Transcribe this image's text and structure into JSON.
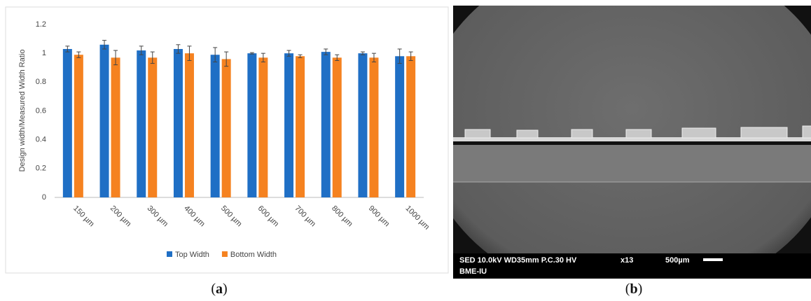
{
  "chart_data": {
    "type": "bar",
    "y_label": "Design width/Measured Width Ratio",
    "categories": [
      "150 µm",
      "200 µm",
      "300 µm",
      "400 µm",
      "500 µm",
      "600 µm",
      "700 µm",
      "800 µm",
      "900 µm",
      "1000 µm"
    ],
    "series": [
      {
        "name": "Top Width",
        "color": "#1f6fc5",
        "values": [
          1.03,
          1.06,
          1.02,
          1.03,
          0.99,
          1.0,
          1.0,
          1.01,
          1.0,
          0.98
        ],
        "errors": [
          0.02,
          0.03,
          0.03,
          0.03,
          0.05,
          0.005,
          0.02,
          0.02,
          0.01,
          0.05
        ]
      },
      {
        "name": "Bottom Width",
        "color": "#f58220",
        "values": [
          0.99,
          0.97,
          0.97,
          1.0,
          0.96,
          0.97,
          0.98,
          0.97,
          0.97,
          0.98
        ],
        "errors": [
          0.02,
          0.05,
          0.04,
          0.05,
          0.05,
          0.03,
          0.01,
          0.02,
          0.03,
          0.03
        ]
      }
    ],
    "ylim": [
      0,
      1.2
    ],
    "yticks": [
      0,
      0.2,
      0.4,
      0.6,
      0.8,
      1,
      1.2
    ],
    "grid": false,
    "legend": "bottom"
  },
  "sem_image": {
    "info": "SED 10.0kV WD35mm P.C.30 HV",
    "magnification": "x13",
    "scale": "500µm",
    "lab": "BME-IU"
  },
  "panel_labels": [
    "a",
    "b"
  ]
}
